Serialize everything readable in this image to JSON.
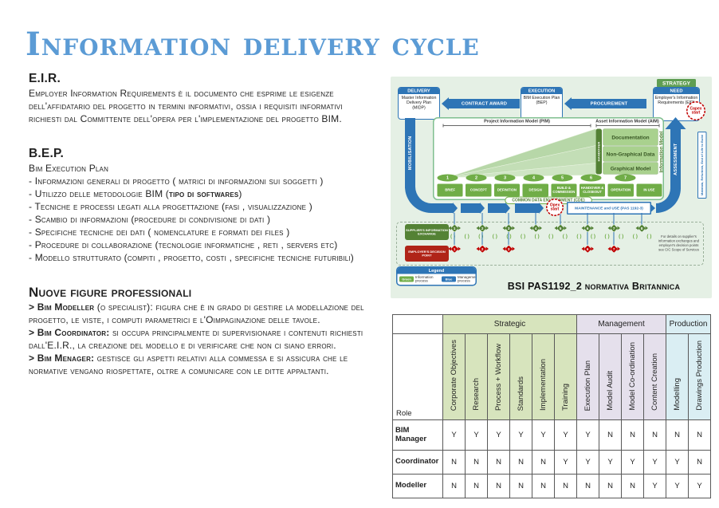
{
  "title": "Information delivery cycle",
  "eir": {
    "heading": "E.I.R.",
    "body": "Employer Information Requirements è il documento che esprime le esigenze dell'affidatario del progetto in termini informativi, ossia i requisiti informativi richiesti dal Committente dell'opera per l'implementazione del progetto BIM."
  },
  "bep": {
    "heading": "B.E.P.",
    "subheading": "Bim Execution Plan",
    "items": [
      {
        "pre": "- Informazioni generali di progetto ( matrici di informazioni sui soggetti )",
        "bold": "",
        "post": ""
      },
      {
        "pre": "- Utilizzo delle metodologie BIM (",
        "bold": "tipo di softwares",
        "post": ")"
      },
      {
        "pre": "- Tecniche e processi legati alla progettazione (fasi , visualizzazione )",
        "bold": "",
        "post": ""
      },
      {
        "pre": "- Scambio di informazioni (procedure di condivisione di dati )",
        "bold": "",
        "post": ""
      },
      {
        "pre": "- Specifiche tecniche dei dati ( nomenclature e formati dei files )",
        "bold": "",
        "post": ""
      },
      {
        "pre": "- Procedure di collaborazione (tecnologie informatiche , reti , servers etc)",
        "bold": "",
        "post": ""
      },
      {
        "pre": "- Modello strutturato (compiti , progetto, costi , specifiche tecniche futuribili)",
        "bold": "",
        "post": ""
      }
    ]
  },
  "figures": {
    "heading": "Nuove figure professionali",
    "items": [
      {
        "lead": "> Bim Modeller",
        "rest": " (o specialist): figura che è in grado di gestire la modellazione del progetto, le viste, i computi parametrici e l'Oimpaginazione delle tavole."
      },
      {
        "lead": "> Bim Coordinator:",
        "rest": " si occupa principalmente di supervisionare i contenuti richiesti dall'E.I.R., la creazione del modello e di verificare che non ci siano errori."
      },
      {
        "lead": "> Bim Menager:",
        "rest": " gestisce gli aspetti relativi alla commessa e si assicura che le normative vengano riospettate, oltre a comunicare con le ditte appaltanti."
      }
    ]
  },
  "diagram": {
    "strategy": "STRATEGY",
    "delivery": {
      "header": "DELIVERY",
      "body": "Master Information Delivery Plan (MIDP)"
    },
    "contract_award": "CONTRACT AWARD",
    "execution": {
      "header": "EXECUTION",
      "body": "BIM Execution Plan (BEP)"
    },
    "procurement": "PROCUREMENT",
    "need": {
      "header": "NEED",
      "body": "Employer's Information Requirements (EIR)"
    },
    "capex": "Capex start",
    "opex": "Opex start",
    "mobilisation": "MOBILISATION",
    "assessment": "ASSESSMENT",
    "assessment_note": "Maintain, Refurbish, End of Life to Build",
    "pim": "Project Information Model (PIM)",
    "aim": "Asset Information Model (AIM)",
    "layers": [
      "Documentation",
      "Non-Graphical Data",
      "Graphical Model"
    ],
    "handover": "HANDOVER",
    "information_model": "Information Model",
    "stage_numbers": [
      "1",
      "2",
      "3",
      "4",
      "5",
      "6",
      "7"
    ],
    "stages": [
      "BRIEF",
      "CONCEPT",
      "DEFINITION",
      "DESIGN",
      "BUILD & COMMISSION",
      "HANDOVER & CLOSEOUT",
      "OPERATION",
      "IN USE"
    ],
    "cde": "COMMON DATA ENVIRONMENT (CDE)",
    "maintenance": "MAINTENANCE and USE (PAS 1192-3)",
    "supplier_label": "SUPPLIER'S INFORMATION EXCHANGE",
    "employer_label": "EMPLOYER'S DECISION POINT",
    "supplier_points": [
      "1",
      "2",
      "3",
      "4",
      "5",
      "6",
      "7",
      "8"
    ],
    "employer_points": [
      "1",
      "2",
      "3",
      "6",
      "7"
    ],
    "note": "For details on supplier's information exchanges and employer's decision points see CIC Scope of Services",
    "legend": {
      "title": "Legend",
      "items": [
        {
          "chip": "Green",
          "label": "Information process"
        },
        {
          "chip": "Blue",
          "label": "Management process"
        }
      ]
    },
    "caption": "BSI PAS1192_2 normativa Britannica"
  },
  "table": {
    "role_header": "Role",
    "groups": [
      {
        "label": "Strategic",
        "span": 6,
        "color": "#d7e4bd"
      },
      {
        "label": "Management",
        "span": 4,
        "color": "#e5e0ec"
      },
      {
        "label": "Production",
        "span": 2,
        "color": "#daeef3"
      }
    ],
    "columns": [
      "Corporate Objectives",
      "Research",
      "Process + Workflow",
      "Standards",
      "Implementation",
      "Training",
      "Execution Plan",
      "Model Audit",
      "Model Co-ordination",
      "Content Creation",
      "Modelling",
      "Drawings Production"
    ],
    "rows": [
      {
        "role": "BIM Manager",
        "values": [
          "Y",
          "Y",
          "Y",
          "Y",
          "Y",
          "Y",
          "Y",
          "N",
          "N",
          "N",
          "N",
          "N"
        ],
        "highlight": [
          "g",
          "g",
          "g",
          "g",
          "g",
          "g",
          "g",
          "",
          "",
          "",
          "",
          ""
        ]
      },
      {
        "role": "Coordinator",
        "values": [
          "N",
          "N",
          "N",
          "N",
          "N",
          "Y",
          "Y",
          "Y",
          "Y",
          "Y",
          "Y",
          "N"
        ],
        "highlight": [
          "",
          "",
          "",
          "",
          "",
          "m",
          "m",
          "m",
          "m",
          "m",
          "m",
          ""
        ]
      },
      {
        "role": "Modeller",
        "values": [
          "N",
          "N",
          "N",
          "N",
          "N",
          "N",
          "N",
          "N",
          "N",
          "Y",
          "Y",
          "Y"
        ],
        "highlight": [
          "",
          "",
          "",
          "",
          "",
          "",
          "",
          "",
          "",
          "p",
          "p",
          "p"
        ]
      }
    ]
  },
  "colors": {
    "title_blue": "#5b9bd5",
    "management_blue": "#2e75b6",
    "process_green": "#70ad47",
    "decision_red": "#c00000",
    "strategic_bg": "#d7e4bd",
    "management_bg": "#e5e0ec",
    "production_bg": "#daeef3",
    "diagram_bg": "#e5f0e5"
  }
}
